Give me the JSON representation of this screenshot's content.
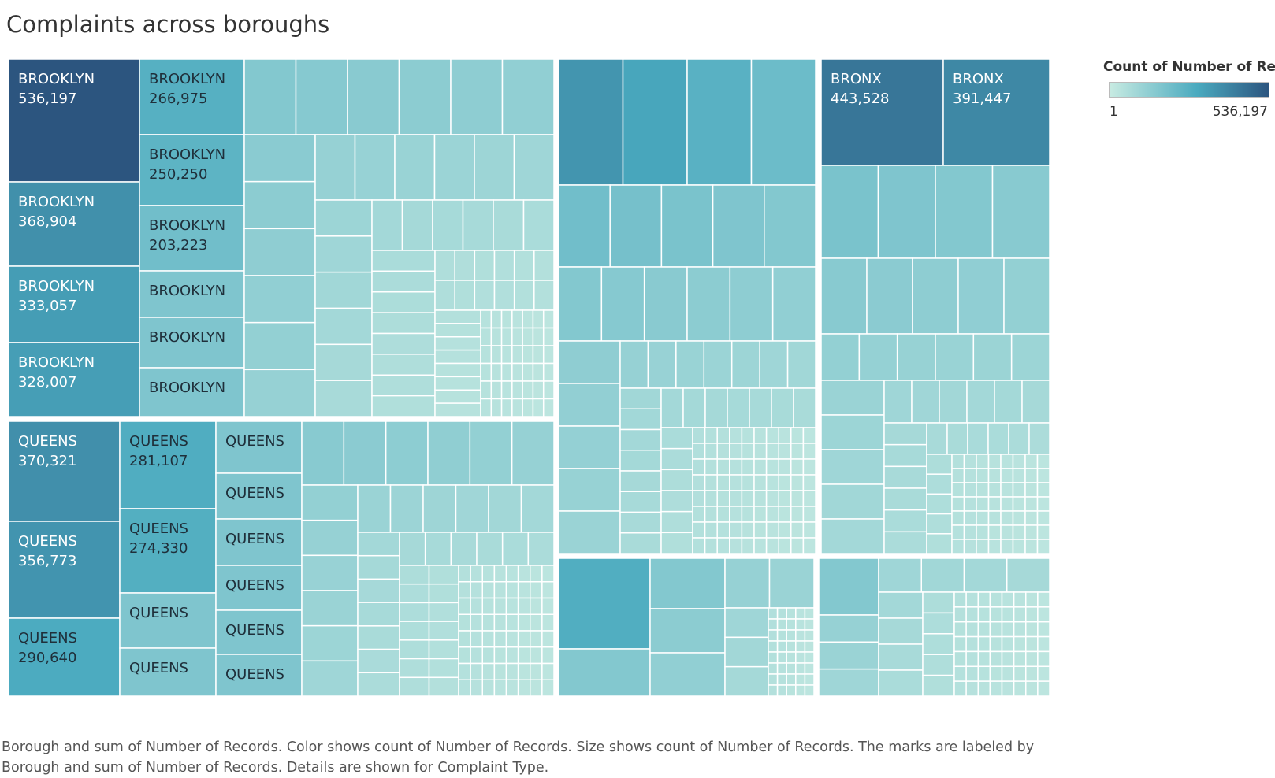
{
  "title": "Complaints across boroughs",
  "caption_line1": "Borough and sum of Number of Records.  Color shows count of Number of Records.  Size shows count of Number of Records.  The marks are labeled by",
  "caption_line2": "Borough and sum of Number of Records.  Details are shown for Complaint Type.",
  "legend": {
    "title": "Count of Number of Rec..",
    "min_label": "1",
    "max_label": "536,197",
    "color_min": "#c8ebe2",
    "color_mid": "#4aaabf",
    "color_max": "#2c557f"
  },
  "chart_data": {
    "type": "treemap",
    "title": "Complaints across boroughs",
    "color_measure": "Count of Number of Records",
    "color_range": [
      1,
      536197
    ],
    "labeled_marks": [
      {
        "borough": "BROOKLYN",
        "value": 536197,
        "label": "536,197"
      },
      {
        "borough": "BROOKLYN",
        "value": 368904,
        "label": "368,904"
      },
      {
        "borough": "BROOKLYN",
        "value": 333057,
        "label": "333,057"
      },
      {
        "borough": "BROOKLYN",
        "value": 328007,
        "label": "328,007"
      },
      {
        "borough": "BROOKLYN",
        "value": 266975,
        "label": "266,975"
      },
      {
        "borough": "BROOKLYN",
        "value": 250250,
        "label": "250,250"
      },
      {
        "borough": "BROOKLYN",
        "value": 203223,
        "label": "203,223"
      },
      {
        "borough": "BROOKLYN",
        "value": null,
        "label": ""
      },
      {
        "borough": "BROOKLYN",
        "value": null,
        "label": ""
      },
      {
        "borough": "BROOKLYN",
        "value": null,
        "label": ""
      },
      {
        "borough": "QUEENS",
        "value": 370321,
        "label": "370,321"
      },
      {
        "borough": "QUEENS",
        "value": 356773,
        "label": "356,773"
      },
      {
        "borough": "QUEENS",
        "value": 290640,
        "label": "290,640"
      },
      {
        "borough": "QUEENS",
        "value": 281107,
        "label": "281,107"
      },
      {
        "borough": "QUEENS",
        "value": 274330,
        "label": "274,330"
      },
      {
        "borough": "QUEENS",
        "value": null,
        "label": ""
      },
      {
        "borough": "QUEENS",
        "value": null,
        "label": ""
      },
      {
        "borough": "QUEENS",
        "value": null,
        "label": ""
      },
      {
        "borough": "QUEENS",
        "value": null,
        "label": ""
      },
      {
        "borough": "QUEENS",
        "value": null,
        "label": ""
      },
      {
        "borough": "QUEENS",
        "value": null,
        "label": ""
      },
      {
        "borough": "QUEENS",
        "value": null,
        "label": ""
      },
      {
        "borough": "QUEENS",
        "value": null,
        "label": ""
      },
      {
        "borough": "BRONX",
        "value": 443528,
        "label": "443,528"
      },
      {
        "borough": "BRONX",
        "value": 391447,
        "label": "391,447"
      }
    ]
  }
}
